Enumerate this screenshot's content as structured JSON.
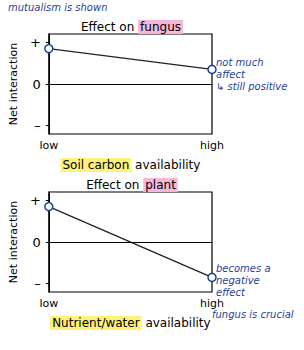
{
  "chart_data": [
    {
      "type": "line",
      "title": "Effect on fungus",
      "xlabel": "Soil carbon availability",
      "ylabel": "Net interaction",
      "categories": [
        "low",
        "high"
      ],
      "series": [
        {
          "values": [
            0.85,
            0.35
          ],
          "color": "#222222",
          "marker": "circle"
        }
      ],
      "ylim": [
        -1.2,
        1.2
      ],
      "yticks": [
        {
          "value": -1,
          "label": "–"
        },
        0,
        {
          "value": 1,
          "label": "+"
        }
      ],
      "annotations": [
        "mutualism is shown",
        "not much\naffect\n↳ still positive"
      ]
    },
    {
      "type": "line",
      "title": "Effect on plant",
      "xlabel": "Nutrient/water availability",
      "ylabel": "Net interaction",
      "categories": [
        "low",
        "high"
      ],
      "series": [
        {
          "values": [
            0.85,
            -0.85
          ],
          "color": "#222222",
          "marker": "circle"
        }
      ],
      "ylim": [
        -1.2,
        1.2
      ],
      "yticks": [
        {
          "value": -1,
          "label": "–"
        },
        0,
        {
          "value": 1,
          "label": "+"
        }
      ],
      "annotations": [
        "becomes a\nnegative\neffect",
        "fungus is crucial"
      ]
    }
  ]
}
